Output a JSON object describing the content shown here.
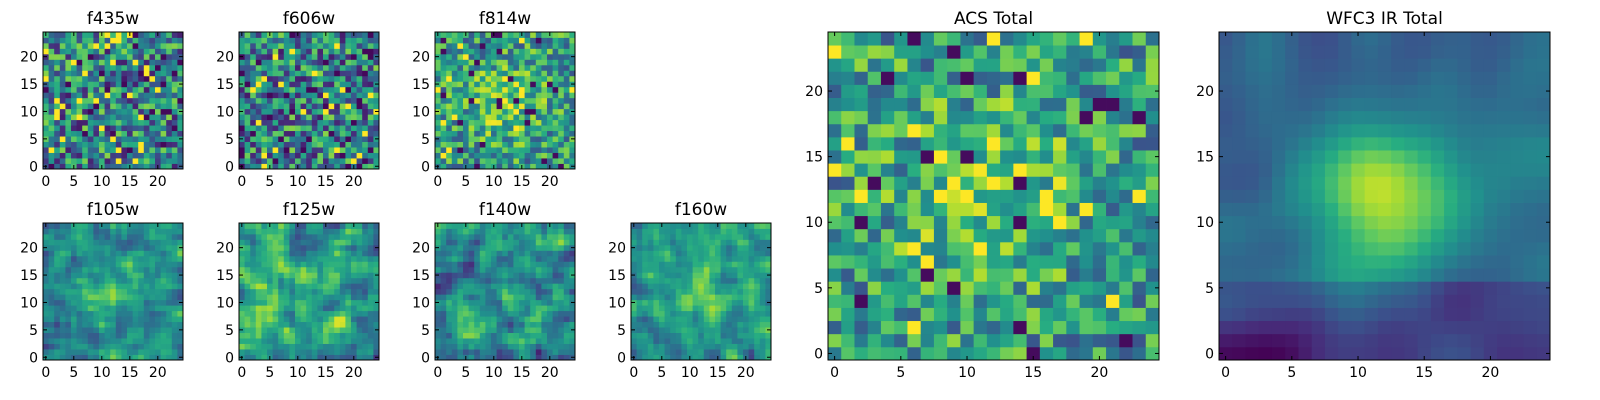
{
  "chart_data": [
    {
      "type": "heatmap",
      "title": "f435w",
      "size": 25,
      "xticks": [
        0,
        5,
        10,
        15,
        20
      ],
      "yticks": [
        0,
        5,
        10,
        15,
        20
      ],
      "colormap": "viridis",
      "pattern": "noise",
      "seed": 11
    },
    {
      "type": "heatmap",
      "title": "f606w",
      "size": 25,
      "xticks": [
        0,
        5,
        10,
        15,
        20
      ],
      "yticks": [
        0,
        5,
        10,
        15,
        20
      ],
      "colormap": "viridis",
      "pattern": "noise",
      "seed": 23
    },
    {
      "type": "heatmap",
      "title": "f814w",
      "size": 25,
      "xticks": [
        0,
        5,
        10,
        15,
        20
      ],
      "yticks": [
        0,
        5,
        10,
        15,
        20
      ],
      "colormap": "viridis",
      "pattern": "noise-peak",
      "seed": 37
    },
    {
      "type": "heatmap",
      "title": "f105w",
      "size": 25,
      "xticks": [
        0,
        5,
        10,
        15,
        20
      ],
      "yticks": [
        0,
        5,
        10,
        15,
        20
      ],
      "colormap": "viridis",
      "pattern": "smooth-peak",
      "seed": 41
    },
    {
      "type": "heatmap",
      "title": "f125w",
      "size": 25,
      "xticks": [
        0,
        5,
        10,
        15,
        20
      ],
      "yticks": [
        0,
        5,
        10,
        15,
        20
      ],
      "colormap": "viridis",
      "pattern": "smooth",
      "seed": 53
    },
    {
      "type": "heatmap",
      "title": "f140w",
      "size": 25,
      "xticks": [
        0,
        5,
        10,
        15,
        20
      ],
      "yticks": [
        0,
        5,
        10,
        15,
        20
      ],
      "colormap": "viridis",
      "pattern": "smooth-dark",
      "seed": 67
    },
    {
      "type": "heatmap",
      "title": "f160w",
      "size": 25,
      "xticks": [
        0,
        5,
        10,
        15,
        20
      ],
      "yticks": [
        0,
        5,
        10,
        15,
        20
      ],
      "colormap": "viridis",
      "pattern": "smooth-peak",
      "seed": 79
    },
    {
      "type": "heatmap",
      "title": "ACS Total",
      "size": 25,
      "xticks": [
        0,
        5,
        10,
        15,
        20
      ],
      "yticks": [
        0,
        5,
        10,
        15,
        20
      ],
      "colormap": "viridis",
      "pattern": "noise-peak",
      "seed": 83
    },
    {
      "type": "heatmap",
      "title": "WFC3 IR Total",
      "size": 25,
      "xticks": [
        0,
        5,
        10,
        15,
        20
      ],
      "yticks": [
        0,
        5,
        10,
        15,
        20
      ],
      "colormap": "viridis",
      "pattern": "galaxy",
      "seed": 97
    }
  ]
}
